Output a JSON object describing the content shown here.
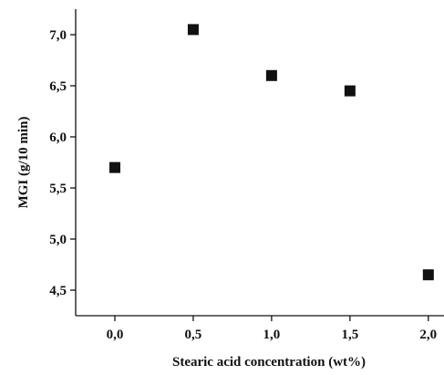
{
  "chart_data": {
    "type": "scatter",
    "title": "",
    "xlabel": "Stearic acid concentration (wt%)",
    "ylabel": "MGI (g/10 min)",
    "x_ticks": [
      "0,0",
      "0,5",
      "1,0",
      "1,5",
      "2,0"
    ],
    "x_tick_values": [
      0.0,
      0.5,
      1.0,
      1.5,
      2.0
    ],
    "y_ticks": [
      "4,5",
      "5,0",
      "5,5",
      "6,0",
      "6,5",
      "7,0"
    ],
    "y_tick_values": [
      4.5,
      5.0,
      5.5,
      6.0,
      6.5,
      7.0
    ],
    "xlim": [
      -0.25,
      2.1
    ],
    "ylim": [
      4.25,
      7.25
    ],
    "grid": false,
    "marker": "square",
    "marker_color": "#111111",
    "series": [
      {
        "x": [
          0.0,
          0.5,
          1.0,
          1.5,
          2.0
        ],
        "y": [
          5.7,
          7.05,
          6.6,
          6.45,
          4.65
        ]
      }
    ]
  }
}
